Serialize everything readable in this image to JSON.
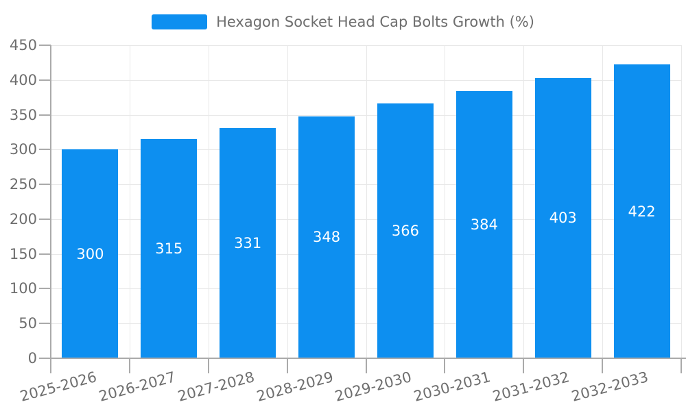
{
  "legend": {
    "items": [
      {
        "label": "Hexagon Socket Head Cap Bolts Growth (%)",
        "color": "#0D8FF0"
      }
    ]
  },
  "chart_data": {
    "type": "bar",
    "title": "Hexagon Socket Head Cap Bolts Growth (%)",
    "categories": [
      "2025-2026",
      "2026-2027",
      "2027-2028",
      "2028-2029",
      "2029-2030",
      "2030-2031",
      "2031-2032",
      "2032-2033"
    ],
    "series": [
      {
        "name": "Hexagon Socket Head Cap Bolts Growth (%)",
        "values": [
          300,
          315,
          331,
          348,
          366,
          384,
          403,
          422
        ]
      }
    ],
    "xlabel": "",
    "ylabel": "",
    "ylim": [
      0,
      450
    ],
    "yticks": [
      0,
      50,
      100,
      150,
      200,
      250,
      300,
      350,
      400,
      450
    ],
    "grid": true,
    "legend_position": "top-center",
    "bar_label_position": "inside-middle",
    "x_label_rotation_deg": 15,
    "colors": {
      "bar": "#0D8FF0",
      "grid": "#E8E8E8",
      "axis": "#AAAAAA",
      "tick_text": "#6E6E6E",
      "bar_label": "#FFFFFF",
      "background": "#FFFFFF"
    }
  }
}
